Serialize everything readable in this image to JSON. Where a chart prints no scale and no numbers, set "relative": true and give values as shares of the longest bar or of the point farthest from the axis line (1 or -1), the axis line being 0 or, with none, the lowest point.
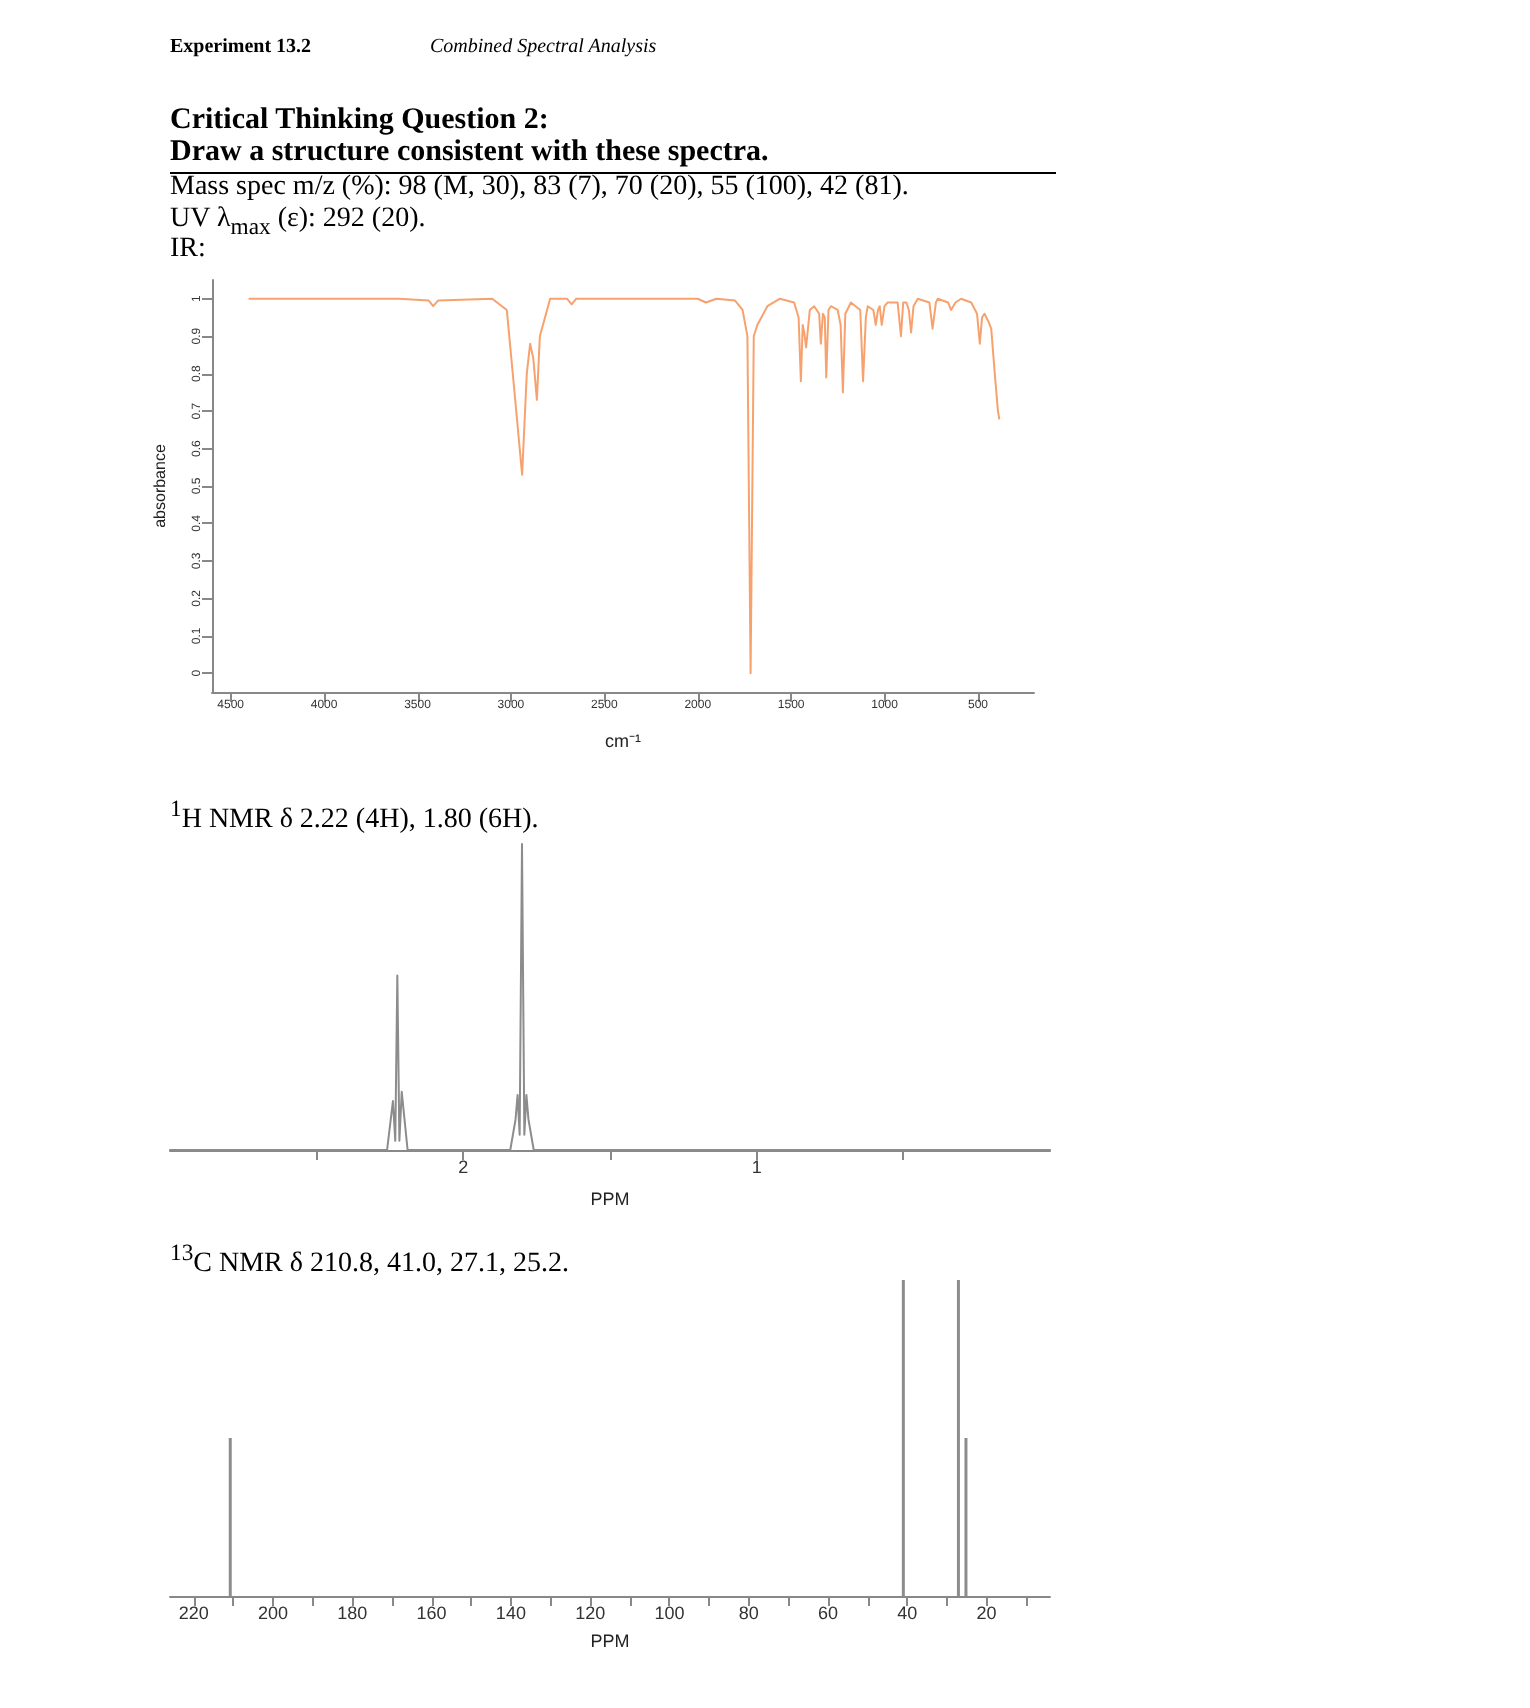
{
  "chart_data": [
    {
      "type": "line",
      "title": "Critical Thinking Question 2:",
      "subtitle": "Draw a structure consistent with these spectra.",
      "annotations": [
        "Experiment 13.2",
        "Combined Spectral Analysis",
        "Mass spec m/z (%): 98 (M, 30), 83 (7), 70 (20), 55 (100), 42 (81).",
        "UV λ$_{max}$ (ε): 292 (20).",
        "IR:"
      ],
      "xlabel": "cm⁻¹",
      "ylabel": "absorbance",
      "x": [
        4400,
        3600,
        3440,
        3416,
        3390,
        3100,
        3022,
        2990,
        2940,
        2915,
        2897,
        2880,
        2861,
        2845,
        2790,
        2700,
        2675,
        2650,
        2000,
        1956,
        1900,
        1800,
        1760,
        1734,
        1717,
        1700,
        1681,
        1627,
        1560,
        1484,
        1460,
        1448,
        1438,
        1430,
        1420,
        1400,
        1377,
        1350,
        1341,
        1330,
        1320,
        1312,
        1300,
        1287,
        1251,
        1235,
        1223,
        1210,
        1180,
        1130,
        1115,
        1100,
        1090,
        1060,
        1047,
        1035,
        1026,
        1015,
        1000,
        983,
        930,
        912,
        900,
        883,
        870,
        858,
        845,
        822,
        760,
        743,
        725,
        715,
        660,
        644,
        620,
        590,
        536,
        505,
        490,
        478,
        465,
        445,
        429,
        410,
        393,
        386
      ],
      "series": [
        {
          "color": "#f7a26e",
          "values": [
            1.0,
            1.0,
            0.995,
            0.98,
            0.995,
            1.0,
            0.97,
            0.8,
            0.53,
            0.8,
            0.88,
            0.84,
            0.73,
            0.9,
            1.0,
            1.0,
            0.985,
            1.0,
            1.0,
            0.99,
            1.0,
            0.995,
            0.97,
            0.9,
            0.0,
            0.9,
            0.93,
            0.98,
            1.0,
            0.99,
            0.95,
            0.78,
            0.93,
            0.91,
            0.87,
            0.97,
            0.98,
            0.96,
            0.88,
            0.96,
            0.95,
            0.79,
            0.97,
            0.98,
            0.97,
            0.93,
            0.75,
            0.96,
            0.99,
            0.97,
            0.78,
            0.95,
            0.98,
            0.97,
            0.93,
            0.97,
            0.98,
            0.93,
            0.98,
            0.99,
            0.99,
            0.9,
            0.99,
            0.99,
            0.97,
            0.91,
            0.98,
            1.0,
            0.99,
            0.92,
            0.99,
            1.0,
            0.99,
            0.97,
            0.99,
            1.0,
            0.99,
            0.96,
            0.88,
            0.95,
            0.96,
            0.94,
            0.92,
            0.8,
            0.7,
            0.68
          ]
        }
      ],
      "xlim": [
        4600,
        200
      ],
      "xticks": [
        4500,
        4000,
        3500,
        3000,
        2500,
        2000,
        1500,
        1000,
        500
      ],
      "ylim": [
        -0.05,
        1.05
      ],
      "yticks": [
        0,
        0.1,
        0.2,
        0.3,
        0.4,
        0.5,
        0.6,
        0.7,
        0.8,
        0.9,
        1
      ],
      "marker": "none"
    },
    {
      "type": "line",
      "title": "$^{1}$H NMR δ 2.22 (4H), 1.80 (6H).",
      "xlabel": "PPM",
      "relative": true,
      "x": [
        3.0,
        2.26,
        2.24,
        2.232,
        2.225,
        2.218,
        2.21,
        2.19,
        1.84,
        1.822,
        1.815,
        1.808,
        1.8,
        1.792,
        1.785,
        1.778,
        1.76,
        0
      ],
      "series": [
        {
          "color": "#8c8c8c",
          "values": [
            0,
            0,
            0.16,
            0.03,
            0.57,
            0.03,
            0.19,
            0,
            0,
            0.1,
            0.18,
            0.05,
            1,
            0.05,
            0.18,
            0.1,
            0,
            0
          ]
        }
      ],
      "xlim": [
        3,
        0
      ],
      "xticks": [
        {
          "value": 2.5,
          "label": null
        },
        2,
        {
          "value": 1.5,
          "label": null
        },
        1,
        {
          "value": 0.5,
          "label": null
        }
      ],
      "marker": "none"
    },
    {
      "type": "bar",
      "title": "$^{13}$C NMR δ 210.8, 41.0, 27.1, 25.2.",
      "xlabel": "PPM",
      "relative": true,
      "x": [
        210.8,
        41.0,
        27.1,
        25.2
      ],
      "series": [
        {
          "color": "#8c8c8c",
          "values": [
            0.5,
            1,
            1,
            0.5
          ]
        }
      ],
      "xlim": [
        226,
        4
      ],
      "xticks": [
        220,
        {
          "value": 210,
          "label": null
        },
        200,
        {
          "value": 190,
          "label": null
        },
        180,
        {
          "value": 170,
          "label": null
        },
        160,
        {
          "value": 150,
          "label": null
        },
        140,
        {
          "value": 130,
          "label": null
        },
        120,
        {
          "value": 110,
          "label": null
        },
        100,
        {
          "value": 90,
          "label": null
        },
        80,
        {
          "value": 70,
          "label": null
        },
        60,
        {
          "value": 50,
          "label": null
        },
        40,
        {
          "value": 30,
          "label": null
        },
        20,
        {
          "value": 10,
          "label": null
        }
      ]
    }
  ]
}
